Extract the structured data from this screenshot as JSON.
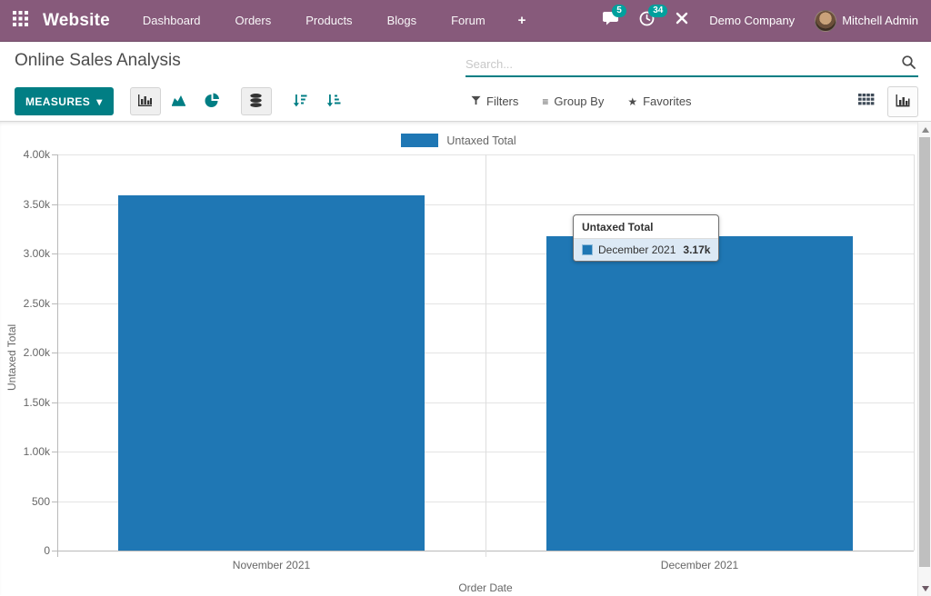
{
  "navbar": {
    "bg_color": "#875A7B",
    "badge_color": "#00A09D",
    "app_name": "Website",
    "menu_items": [
      "Dashboard",
      "Orders",
      "Products",
      "Blogs",
      "Forum"
    ],
    "plus_glyph": "+",
    "systray": {
      "messages_count": "5",
      "activities_count": "34",
      "company_name": "Demo Company",
      "user_name": "Mitchell Admin"
    }
  },
  "control_panel": {
    "accent_color": "#017e84",
    "title": "Online Sales Analysis",
    "search": {
      "placeholder": "Search...",
      "value": ""
    },
    "measures_button": "MEASURES",
    "measures_caret": "▾",
    "facets": {
      "filters": "Filters",
      "group_by": "Group By",
      "favorites": "Favorites"
    },
    "group_by_glyph": "≡",
    "favorites_glyph": "★"
  },
  "chart_data": {
    "type": "bar",
    "title": "",
    "categories": [
      "November 2021",
      "December 2021"
    ],
    "series": [
      {
        "name": "Untaxed Total",
        "values": [
          3590,
          3170
        ],
        "color": "#1f77b4"
      }
    ],
    "xlabel": "Order Date",
    "ylabel": "Untaxed Total",
    "ylim": [
      0,
      4000
    ],
    "yticks": [
      {
        "value": 4000,
        "label": "4.00k"
      },
      {
        "value": 3500,
        "label": "3.50k"
      },
      {
        "value": 3000,
        "label": "3.00k"
      },
      {
        "value": 2500,
        "label": "2.50k"
      },
      {
        "value": 2000,
        "label": "2.00k"
      },
      {
        "value": 1500,
        "label": "1.50k"
      },
      {
        "value": 1000,
        "label": "1.00k"
      },
      {
        "value": 500,
        "label": "500"
      },
      {
        "value": 0,
        "label": "0"
      }
    ],
    "grid": true,
    "legend": [
      "Untaxed Total"
    ],
    "legend_position": "top"
  },
  "tooltip": {
    "header": "Untaxed Total",
    "rows": [
      {
        "label": "December 2021",
        "value": "3.17k"
      }
    ]
  }
}
